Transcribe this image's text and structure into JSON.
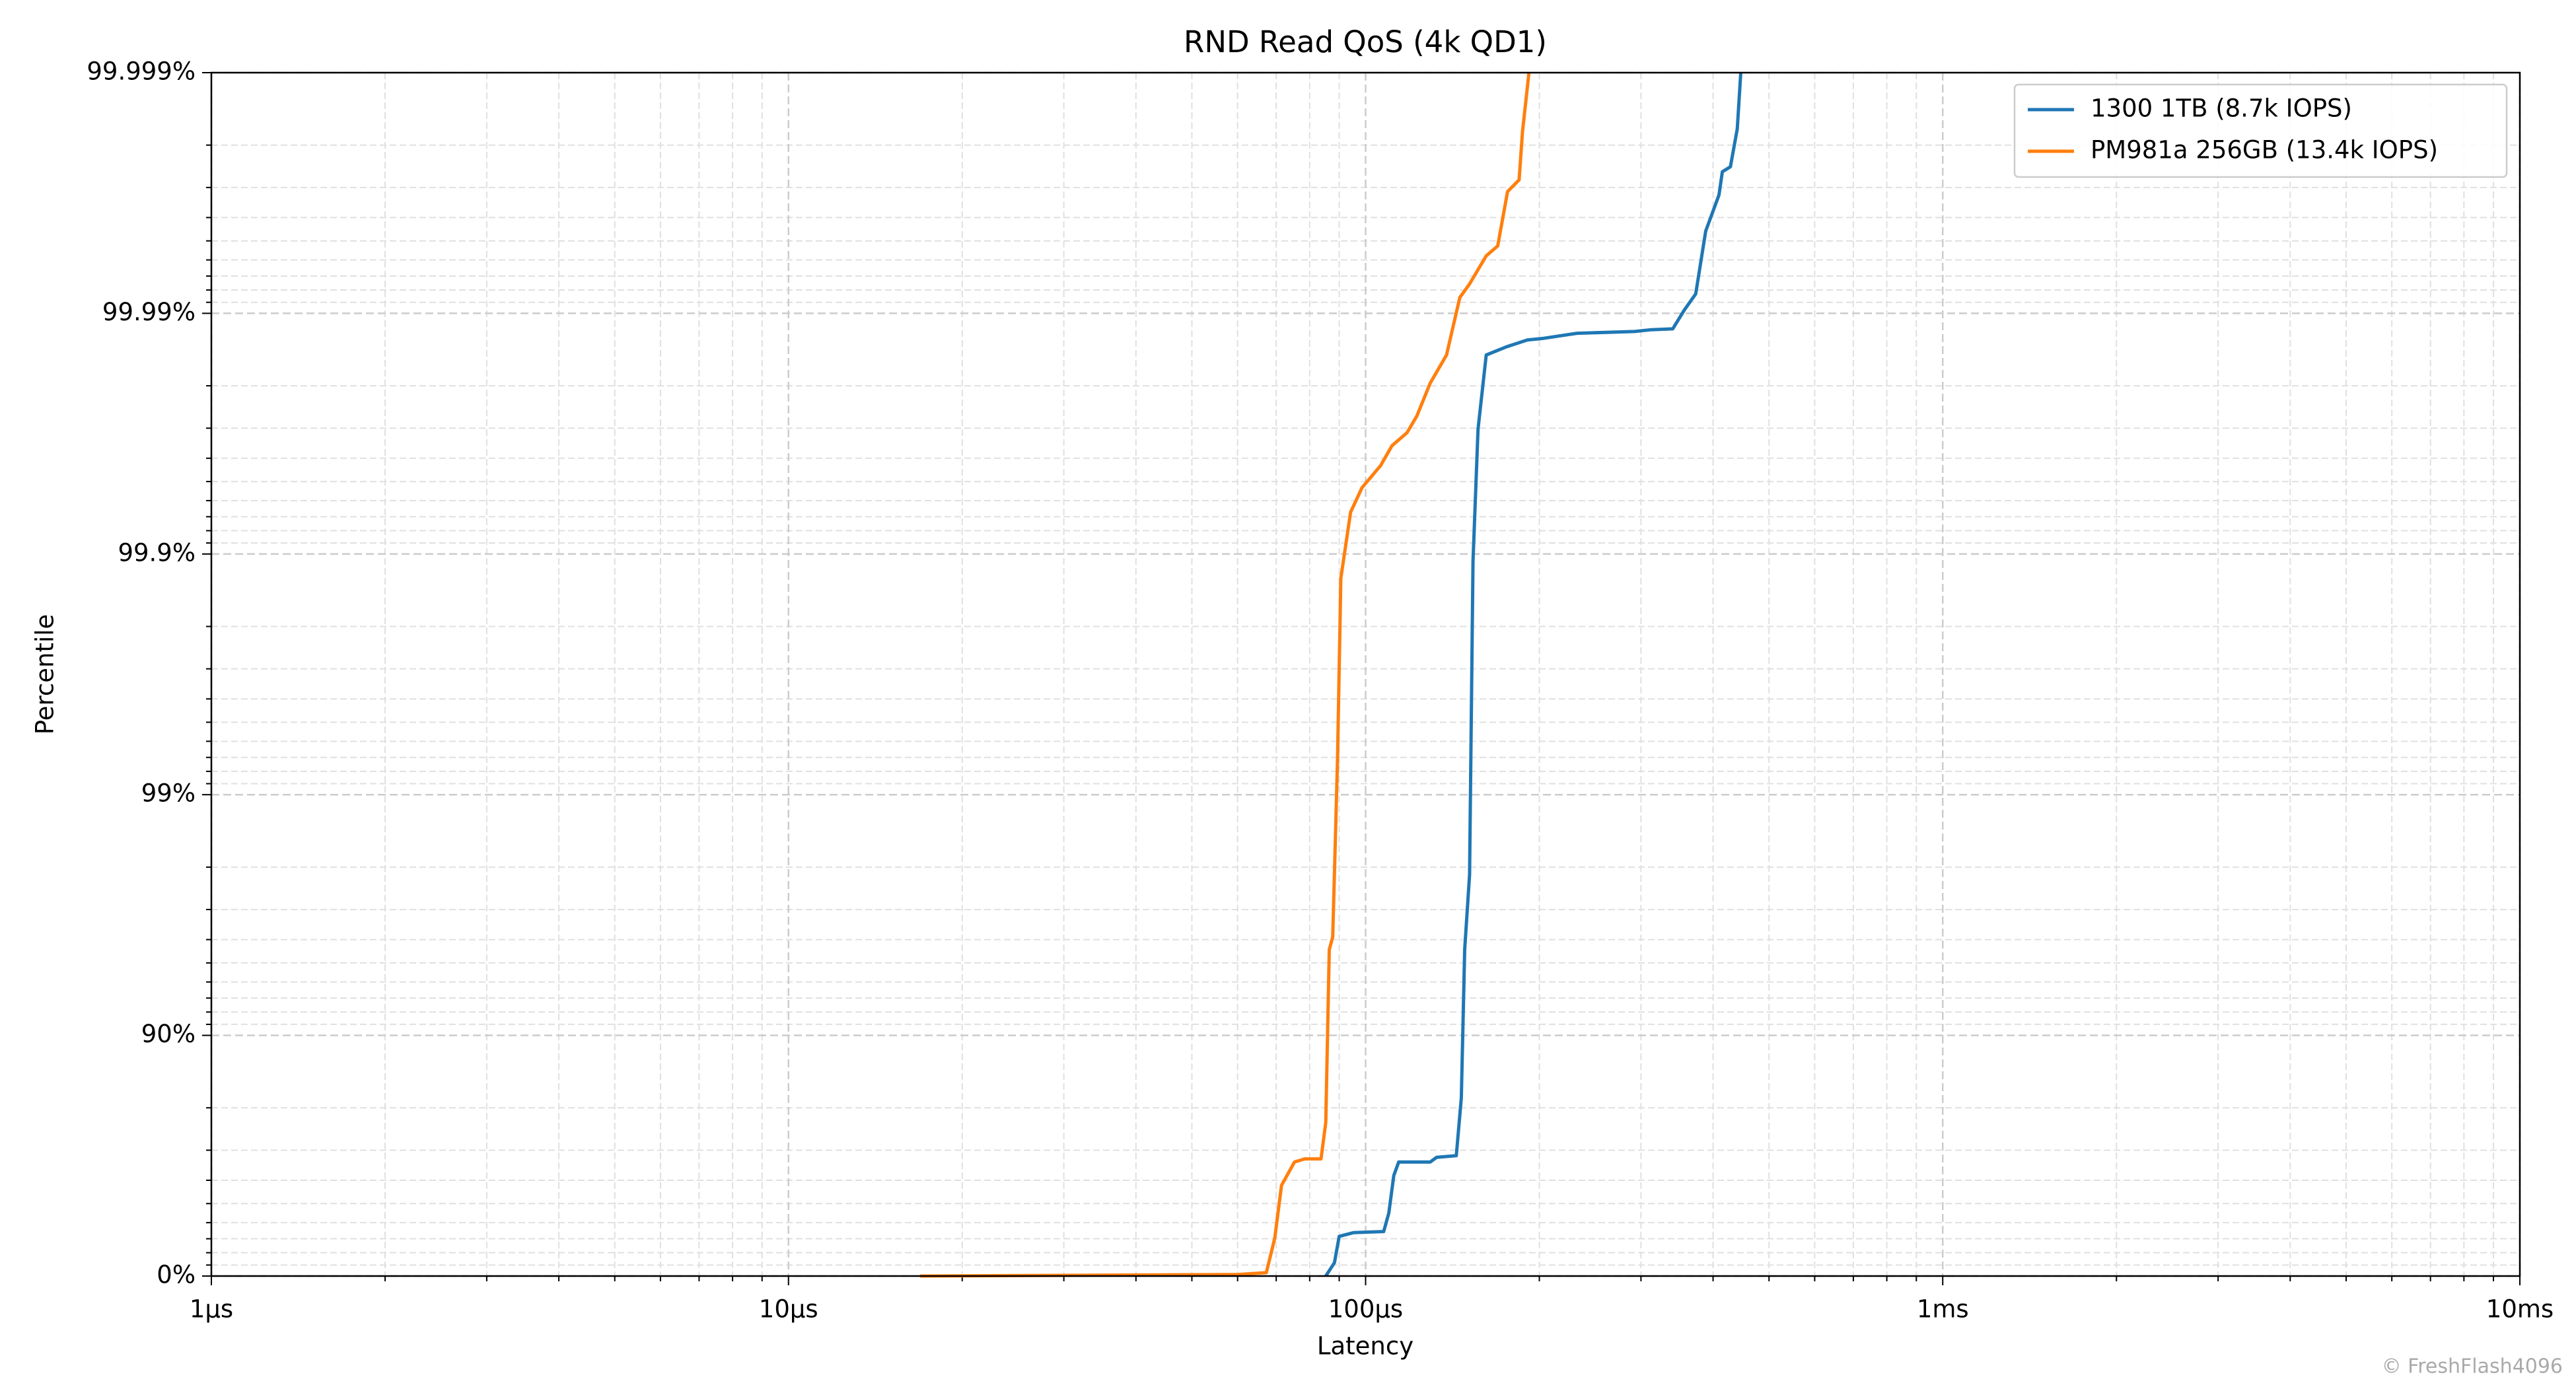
{
  "chart_data": {
    "type": "line",
    "title": "RND Read QoS (4k QD1)",
    "x_label": "Latency",
    "y_label": "Percentile",
    "x_scale": "log",
    "y_scale": "nines",
    "grid": true,
    "legend_position": "upper right",
    "xlim": [
      1,
      10000
    ],
    "xticks": [
      {
        "value": 1,
        "label": "1µs"
      },
      {
        "value": 10,
        "label": "10µs"
      },
      {
        "value": 100,
        "label": "100µs"
      },
      {
        "value": 1000,
        "label": "1ms"
      },
      {
        "value": 10000,
        "label": "10ms"
      }
    ],
    "xminorticks": [
      2,
      3,
      4,
      5,
      6,
      7,
      8,
      9,
      20,
      30,
      40,
      50,
      60,
      70,
      80,
      90,
      200,
      300,
      400,
      500,
      600,
      700,
      800,
      900,
      2000,
      3000,
      4000,
      5000,
      6000,
      7000,
      8000,
      9000
    ],
    "ylim": [
      0,
      99.999
    ],
    "yticks": [
      {
        "value": 0,
        "label": "0%"
      },
      {
        "value": 90,
        "label": "90%"
      },
      {
        "value": 99,
        "label": "99%"
      },
      {
        "value": 99.9,
        "label": "99.9%"
      },
      {
        "value": 99.99,
        "label": "99.99%"
      },
      {
        "value": 99.999,
        "label": "99.999%"
      }
    ],
    "yminorticks": [
      10,
      20,
      30,
      40,
      50,
      60,
      70,
      80,
      91,
      92,
      93,
      94,
      95,
      96,
      97,
      98,
      99.1,
      99.2,
      99.3,
      99.4,
      99.5,
      99.6,
      99.7,
      99.8,
      99.91,
      99.92,
      99.93,
      99.94,
      99.95,
      99.96,
      99.97,
      99.98,
      99.991,
      99.992,
      99.993,
      99.994,
      99.995,
      99.996,
      99.997,
      99.998
    ],
    "series": [
      {
        "name": "1300 1TB (8.7k IOPS)",
        "color": "#1f77b4",
        "x": [
          85.3,
          88.3,
          90,
          95.4,
          107.5,
          109.7,
          111.9,
          114.1,
          129.4,
          132.8,
          143.6,
          146.5,
          148.5,
          151.4,
          153.5,
          156.6,
          161.8,
          175,
          190.6,
          203.6,
          232.4,
          292.6,
          312.6,
          340.6,
          356.5,
          373.3,
          388.4,
          409.5,
          415.1,
          428.7,
          440.6,
          446.7
        ],
        "values": [
          0,
          11.9,
          31.6,
          34,
          34.7,
          45.2,
          61.8,
          66.4,
          66.4,
          67.9,
          68.4,
          81.8,
          95.6,
          97.85,
          99.893,
          99.9697,
          99.9851,
          99.9862,
          99.9871,
          99.9873,
          99.9879,
          99.9881,
          99.9883,
          99.9884,
          99.9903,
          99.9917,
          99.99545,
          99.99678,
          99.99742,
          99.99754,
          99.99829,
          99.999
        ]
      },
      {
        "name": "PM981a 256GB (13.4k IOPS)",
        "color": "#ff7f0e",
        "x": [
          16.9,
          60.2,
          67.3,
          69.6,
          71.5,
          75.3,
          78.4,
          83.7,
          85.3,
          86.5,
          87.7,
          89.4,
          90.6,
          94.2,
          98.6,
          106.1,
          111.1,
          118,
          122.7,
          129.4,
          138.1,
          145.6,
          151.4,
          161.8,
          169.4,
          176.2,
          184.5,
          187,
          191.9
        ],
        "values": [
          0,
          1.5,
          3.2,
          30.5,
          58,
          66.4,
          67.4,
          67.4,
          77,
          95.6,
          96.1,
          99.29,
          99.874,
          99.933,
          99.947,
          99.957,
          99.9645,
          99.9687,
          99.9733,
          99.9805,
          99.9851,
          99.9914,
          99.99245,
          99.99423,
          99.99475,
          99.99688,
          99.99721,
          99.99824,
          99.999
        ]
      }
    ],
    "watermark": "© FreshFlash4096"
  }
}
